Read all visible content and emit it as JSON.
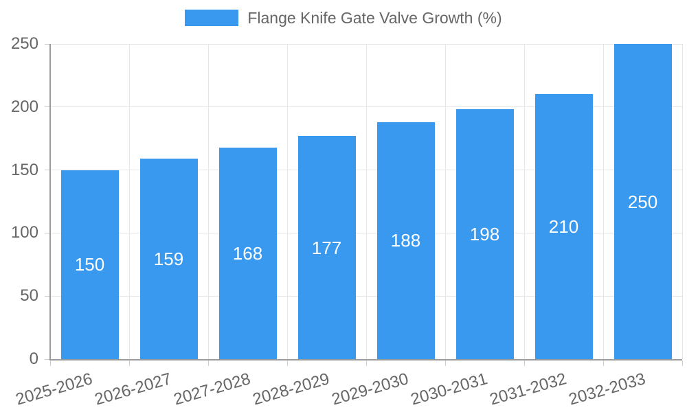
{
  "chart_data": {
    "type": "bar",
    "title": "Flange Knife Gate Valve Growth (%)",
    "legend": {
      "label": "Flange Knife Gate Valve Growth (%)",
      "position": "top"
    },
    "categories": [
      "2025-2026",
      "2026-2027",
      "2027-2028",
      "2028-2029",
      "2029-2030",
      "2030-2031",
      "2031-2032",
      "2032-2033"
    ],
    "series": [
      {
        "name": "Flange Knife Gate Valve Growth (%)",
        "values": [
          150,
          159,
          168,
          177,
          188,
          198,
          210,
          250
        ]
      }
    ],
    "xlabel": "",
    "ylabel": "",
    "ylim": [
      0,
      250
    ],
    "yticks": [
      0,
      50,
      100,
      150,
      200,
      250
    ],
    "grid": true,
    "bar_value_labels": [
      150,
      159,
      168,
      177,
      188,
      198,
      210,
      250
    ],
    "x_tick_rotation_deg": -16,
    "colors": {
      "bar": "#3899ee",
      "barLabel": "#ffffff",
      "tickText": "#666666",
      "legendText": "#666666",
      "grid": "#e6e6e6",
      "tickmark": "#cfcfcf",
      "axis": "#9b9b9b",
      "bg": "#ffffff"
    }
  }
}
